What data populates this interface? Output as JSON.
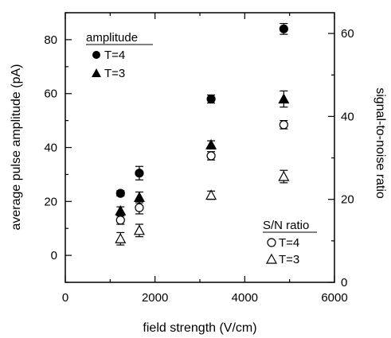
{
  "chart_data": {
    "type": "scatter",
    "xlabel": "field strength (V/cm)",
    "ylabel_left": "average pulse amplitude (pA)",
    "ylabel_right": "signal-to-noise ratio",
    "xlim": [
      0,
      6000
    ],
    "ylim_left": [
      -10,
      90
    ],
    "ylim_right": [
      0,
      65
    ],
    "x_ticks": [
      0,
      2000,
      4000,
      6000
    ],
    "y_left_ticks": [
      0,
      20,
      40,
      60,
      80
    ],
    "y_right_ticks": [
      0,
      20,
      40,
      60
    ],
    "grid": false,
    "legends": {
      "amplitude": {
        "title": "amplitude",
        "entries": [
          {
            "label": "T=4",
            "marker": "filled-circle"
          },
          {
            "label": "T=3",
            "marker": "filled-triangle"
          }
        ]
      },
      "sn_ratio": {
        "title": "S/N ratio",
        "entries": [
          {
            "label": "T=4",
            "marker": "open-circle"
          },
          {
            "label": "T=3",
            "marker": "open-triangle"
          }
        ]
      }
    },
    "series": [
      {
        "name": "amplitude T=4",
        "axis": "left",
        "marker": "filled-circle",
        "points": [
          {
            "x": 1230,
            "y": 23,
            "err": 1
          },
          {
            "x": 1650,
            "y": 30.5,
            "err": 2.5
          },
          {
            "x": 3250,
            "y": 58,
            "err": 1.5
          },
          {
            "x": 4870,
            "y": 84,
            "err": 2
          }
        ]
      },
      {
        "name": "amplitude T=3",
        "axis": "left",
        "marker": "filled-triangle",
        "points": [
          {
            "x": 1230,
            "y": 16.5,
            "err": 1.5
          },
          {
            "x": 1650,
            "y": 21.5,
            "err": 2
          },
          {
            "x": 3250,
            "y": 41,
            "err": 1.5
          },
          {
            "x": 4870,
            "y": 58,
            "err": 3
          }
        ]
      },
      {
        "name": "S/N T=4",
        "axis": "right",
        "marker": "open-circle",
        "points": [
          {
            "x": 1230,
            "y": 15,
            "err": 1
          },
          {
            "x": 1650,
            "y": 18,
            "err": 1.5
          },
          {
            "x": 3250,
            "y": 30.5,
            "err": 1
          },
          {
            "x": 4870,
            "y": 38,
            "err": 1
          }
        ]
      },
      {
        "name": "S/N T=3",
        "axis": "right",
        "marker": "open-triangle",
        "points": [
          {
            "x": 1230,
            "y": 10.5,
            "err": 1.5
          },
          {
            "x": 1650,
            "y": 12.5,
            "err": 1.5
          },
          {
            "x": 3250,
            "y": 21,
            "err": 1
          },
          {
            "x": 4870,
            "y": 25.5,
            "err": 1.5
          }
        ]
      }
    ]
  }
}
